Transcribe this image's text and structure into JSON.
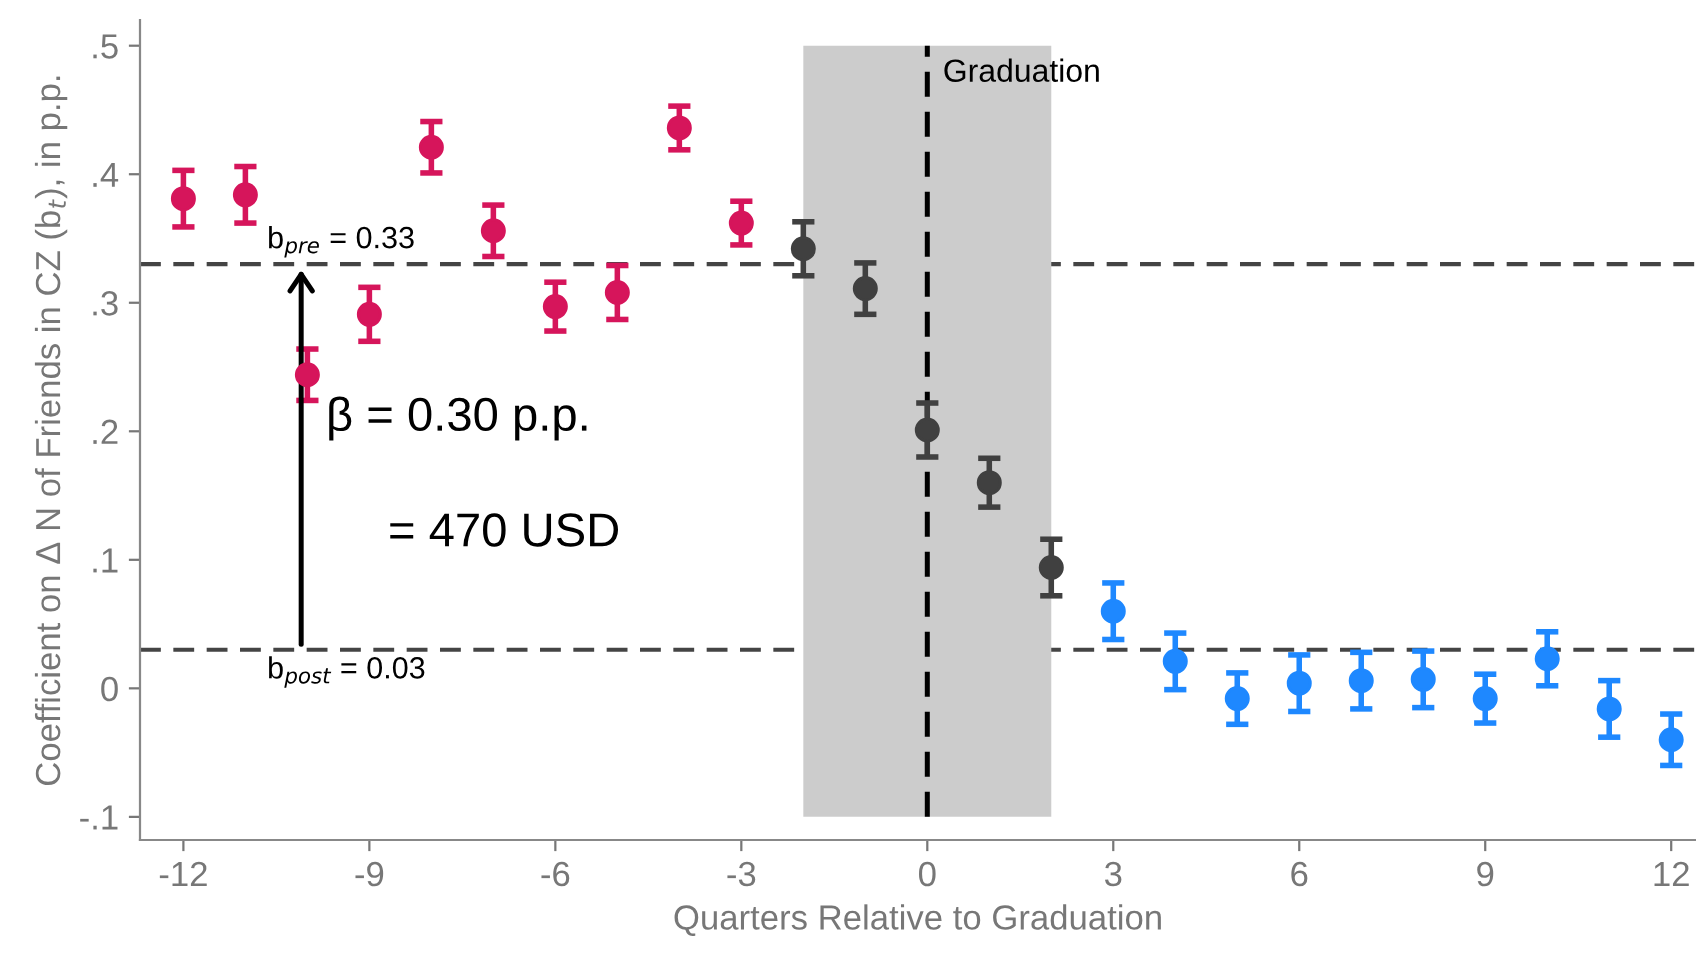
{
  "chart_data": {
    "type": "scatter",
    "xlabel": "Quarters Relative to Graduation",
    "ylabel": "Coefficient on Δ N of Friends in CZ (b$_{t}$), in p.p.",
    "series": [
      {
        "color": "#d6155b",
        "x": [
          -12,
          -11,
          -10,
          -9,
          -8,
          -7,
          -6,
          -5,
          -4,
          -3
        ],
        "values": [
          0.381,
          0.384,
          0.244,
          0.291,
          0.421,
          0.356,
          0.297,
          0.308,
          0.436,
          0.362
        ],
        "errors": [
          0.022,
          0.022,
          0.02,
          0.021,
          0.02,
          0.02,
          0.019,
          0.021,
          0.017,
          0.017
        ]
      },
      {
        "color": "#404040",
        "x": [
          -2,
          -1,
          0,
          1,
          2
        ],
        "values": [
          0.342,
          0.311,
          0.201,
          0.16,
          0.094
        ],
        "errors": [
          0.021,
          0.02,
          0.021,
          0.019,
          0.022
        ]
      },
      {
        "color": "#1e88ff",
        "x": [
          3,
          4,
          5,
          6,
          7,
          8,
          9,
          10,
          11,
          12
        ],
        "values": [
          0.06,
          0.021,
          -0.008,
          0.004,
          0.006,
          0.007,
          -0.008,
          0.023,
          -0.016,
          -0.04
        ],
        "errors": [
          0.022,
          0.022,
          0.02,
          0.022,
          0.022,
          0.022,
          0.019,
          0.021,
          0.022,
          0.02
        ]
      }
    ],
    "marker": "circle",
    "xlim": [
      -12.7,
      12.4
    ],
    "xticks": [
      -12,
      -9,
      -6,
      -3,
      0,
      3,
      6,
      9,
      12
    ],
    "ylim": [
      -0.118,
      0.52
    ],
    "yticks": [
      {
        "value": -0.1,
        "label": "-.1"
      },
      0,
      {
        "value": 0.1,
        "label": ".1"
      },
      {
        "value": 0.2,
        "label": ".2"
      },
      {
        "value": 0.3,
        "label": ".3"
      },
      {
        "value": 0.4,
        "label": ".4"
      },
      {
        "value": 0.5,
        "label": ".5"
      }
    ],
    "ref_lines": [
      {
        "axis": "y",
        "value": 0.33,
        "label": "b$_{pre}$ = 0.33",
        "color": "#444444",
        "line_style": "dashed"
      },
      {
        "axis": "y",
        "value": 0.03,
        "label": "b$_{post}$ = 0.03",
        "color": "#444444",
        "line_style": "dashed"
      },
      {
        "axis": "x",
        "value": 0,
        "label": "Graduation",
        "color": "#000000",
        "line_style": "dashed"
      }
    ],
    "bands": [
      {
        "axis": "x",
        "from": -2,
        "to": 2,
        "color": "#cccccc"
      }
    ],
    "annotations": [
      "β = 0.30 p.p.",
      "= 470 USD"
    ],
    "grid": false,
    "legend": false
  }
}
